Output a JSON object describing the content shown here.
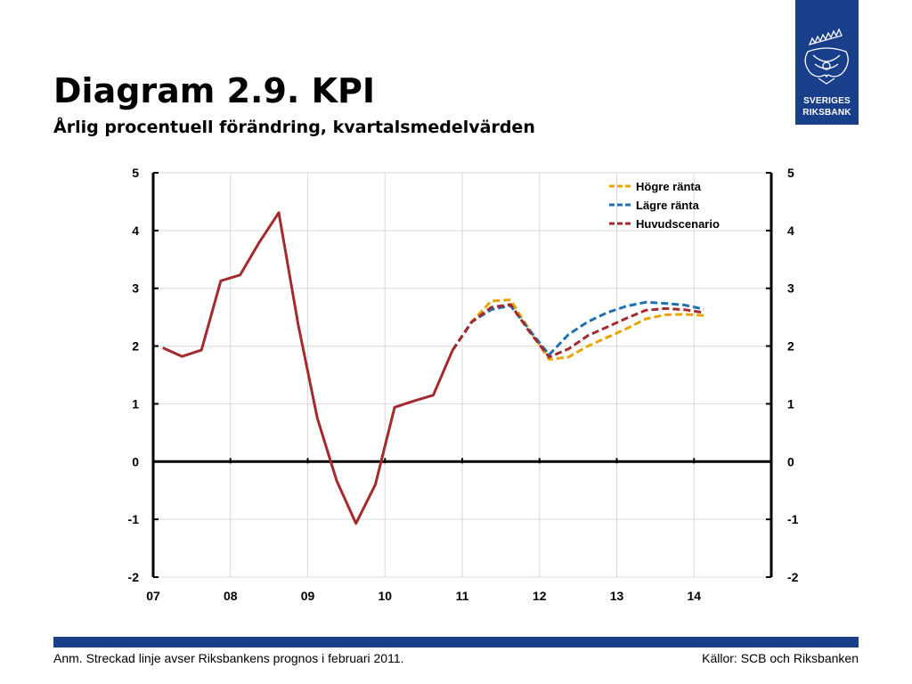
{
  "header": {
    "title": "Diagram 2.9. KPI",
    "subtitle": "Årlig procentuell förändring, kvartalsmedelvärden"
  },
  "logo": {
    "line1": "SVERIGES",
    "line2": "RIKSBANK"
  },
  "footer": {
    "note": "Anm. Streckad linje avser Riksbankens prognos i februari 2011.",
    "source": "Källor: SCB och Riksbanken"
  },
  "colors": {
    "brand": "#1a3f8a",
    "huvud": "#a32a2e",
    "hogre": "#e8a500",
    "lagre": "#1f70b0",
    "grid": "#d9d9d9"
  },
  "chart_data": {
    "type": "line",
    "ylim": [
      -2,
      5
    ],
    "yticks": [
      "-2",
      "-1",
      "0",
      "1",
      "2",
      "3",
      "4",
      "5"
    ],
    "xlim": [
      2007.0,
      2015.0
    ],
    "xticks": [
      {
        "label": "07",
        "value": 2007
      },
      {
        "label": "08",
        "value": 2008
      },
      {
        "label": "09",
        "value": 2009
      },
      {
        "label": "10",
        "value": 2010
      },
      {
        "label": "11",
        "value": 2011
      },
      {
        "label": "12",
        "value": 2012
      },
      {
        "label": "13",
        "value": 2013
      },
      {
        "label": "14",
        "value": 2014
      }
    ],
    "grid": true,
    "legend_position": "top-right",
    "outcome": {
      "x": [
        2007.125,
        2007.375,
        2007.625,
        2007.875,
        2008.125,
        2008.375,
        2008.625,
        2008.875,
        2009.125,
        2009.375,
        2009.625,
        2009.875,
        2010.125,
        2010.375,
        2010.625,
        2010.875
      ],
      "y": [
        1.97,
        1.82,
        1.93,
        3.13,
        3.23,
        3.8,
        4.31,
        2.38,
        0.75,
        -0.33,
        -1.07,
        -0.4,
        0.94,
        1.05,
        1.15,
        1.93
      ]
    },
    "series": [
      {
        "name": "Högre ränta",
        "color": "#e8a500",
        "x": [
          2010.875,
          2011.125,
          2011.375,
          2011.625,
          2011.875,
          2012.125,
          2012.375,
          2012.625,
          2012.875,
          2013.125,
          2013.375,
          2013.625,
          2013.875,
          2014.125
        ],
        "y": [
          1.93,
          2.42,
          2.78,
          2.8,
          2.27,
          1.77,
          1.81,
          2.0,
          2.15,
          2.3,
          2.47,
          2.54,
          2.55,
          2.53
        ]
      },
      {
        "name": "Lägre ränta",
        "color": "#1f70b0",
        "x": [
          2010.875,
          2011.125,
          2011.375,
          2011.625,
          2011.875,
          2012.125,
          2012.375,
          2012.625,
          2012.875,
          2013.125,
          2013.375,
          2013.625,
          2013.875,
          2014.125
        ],
        "y": [
          1.93,
          2.42,
          2.63,
          2.7,
          2.27,
          1.85,
          2.2,
          2.42,
          2.58,
          2.69,
          2.76,
          2.74,
          2.71,
          2.64
        ]
      },
      {
        "name": "Huvudscenario",
        "color": "#a32a2e",
        "x": [
          2010.875,
          2011.125,
          2011.375,
          2011.625,
          2011.875,
          2012.125,
          2012.375,
          2012.625,
          2012.875,
          2013.125,
          2013.375,
          2013.625,
          2013.875,
          2014.125
        ],
        "y": [
          1.93,
          2.42,
          2.67,
          2.72,
          2.24,
          1.81,
          1.95,
          2.18,
          2.33,
          2.48,
          2.62,
          2.65,
          2.63,
          2.58
        ]
      }
    ]
  }
}
